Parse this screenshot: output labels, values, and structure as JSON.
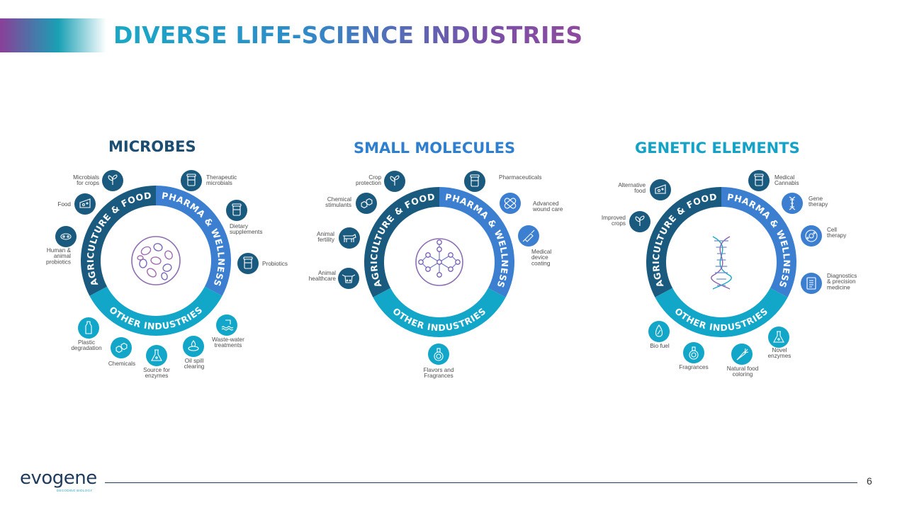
{
  "title": "DIVERSE LIFE-SCIENCE INDUSTRIES",
  "colors": {
    "agriculture": "#1a5a7e",
    "pharma": "#3c7fd0",
    "other": "#12a6c9",
    "icon_circle": "#1a5a7e",
    "icon_circle_light": "#12a6c9"
  },
  "sections": [
    {
      "title": "MICROBES",
      "title_color": "#1b4e72",
      "center_icon": "microbes-cells-icon",
      "ring": {
        "agriculture": "AGRICULTURE & FOOD",
        "pharma": "PHARMA & WELLNESS",
        "other": "OTHER INDUSTRIES"
      },
      "items": [
        {
          "label": [
            "Microbials",
            "for crops"
          ],
          "icon": "sprout-icon"
        },
        {
          "label": [
            "Therapeutic",
            "microbials"
          ],
          "icon": "pill-bottle-icon"
        },
        {
          "label": [
            "Food"
          ],
          "icon": "cheese-icon"
        },
        {
          "label": [
            "Dietary",
            "supplements"
          ],
          "icon": "supplement-jar-icon"
        },
        {
          "label": [
            "Human &",
            "animal",
            "probiotics"
          ],
          "icon": "probiotics-icon"
        },
        {
          "label": [
            "Probiotics"
          ],
          "icon": "probiotics-bottle-icon"
        },
        {
          "label": [
            "Waste-water",
            "treatments"
          ],
          "icon": "water-treatment-icon"
        },
        {
          "label": [
            "Plastic",
            "degradation"
          ],
          "icon": "plastic-bottle-icon"
        },
        {
          "label": [
            "Oil spill",
            "clearing"
          ],
          "icon": "oil-spill-icon"
        },
        {
          "label": [
            "Chemicals"
          ],
          "icon": "chemical-hexagon-icon"
        },
        {
          "label": [
            "Source for",
            "enzymes"
          ],
          "icon": "flask-icon"
        }
      ]
    },
    {
      "title": "SMALL MOLECULES",
      "title_color": "#2f7fd0",
      "center_icon": "molecule-network-icon",
      "ring": {
        "agriculture": "AGRICULTURE & FOOD",
        "pharma": "PHARMA & WELLNESS",
        "other": "OTHER INDUSTRIES"
      },
      "items": [
        {
          "label": [
            "Crop",
            "protection"
          ],
          "icon": "sprout-icon"
        },
        {
          "label": [
            "Pharmaceuticals"
          ],
          "icon": "pill-bottle-icon"
        },
        {
          "label": [
            "Chemical",
            "stimulants"
          ],
          "icon": "chemical-hexagon-icon"
        },
        {
          "label": [
            "Advanced",
            "wound care"
          ],
          "icon": "bandage-icon"
        },
        {
          "label": [
            "Animal",
            "fertility"
          ],
          "icon": "cow-icon"
        },
        {
          "label": [
            "Medical",
            "device",
            "coating"
          ],
          "icon": "syringe-icon"
        },
        {
          "label": [
            "Animal",
            "healthcare"
          ],
          "icon": "cow-head-icon"
        },
        {
          "label": [
            "Flavors and",
            "Fragrances"
          ],
          "icon": "perfume-icon"
        }
      ]
    },
    {
      "title": "GENETIC ELEMENTS",
      "title_color": "#14a3c6",
      "center_icon": "dna-icon",
      "ring": {
        "agriculture": "AGRICULTURE & FOOD",
        "pharma": "PHARMA & WELLNESS",
        "other": "OTHER INDUSTRIES"
      },
      "items": [
        {
          "label": [
            "Medical",
            "Cannabis"
          ],
          "icon": "pill-bottle-icon"
        },
        {
          "label": [
            "Alternative",
            "food"
          ],
          "icon": "cheese-icon"
        },
        {
          "label": [
            "Gene",
            "therapy"
          ],
          "icon": "dna-small-icon"
        },
        {
          "label": [
            "Improved",
            "crops"
          ],
          "icon": "sprout-icon"
        },
        {
          "label": [
            "Cell",
            "therapy"
          ],
          "icon": "cell-icon"
        },
        {
          "label": [
            "Diagnostics",
            "& precision",
            "medicine"
          ],
          "icon": "clipboard-icon"
        },
        {
          "label": [
            "Bio fuel"
          ],
          "icon": "biofuel-drop-icon"
        },
        {
          "label": [
            "Novel",
            "enzymes"
          ],
          "icon": "flask-icon"
        },
        {
          "label": [
            "Fragrances"
          ],
          "icon": "perfume-icon"
        },
        {
          "label": [
            "Natural food",
            "coloring"
          ],
          "icon": "carrot-icon"
        }
      ]
    }
  ],
  "footer": {
    "logo_text": "evogene",
    "logo_tagline": "DECODING BIOLOGY",
    "page_number": "6"
  }
}
